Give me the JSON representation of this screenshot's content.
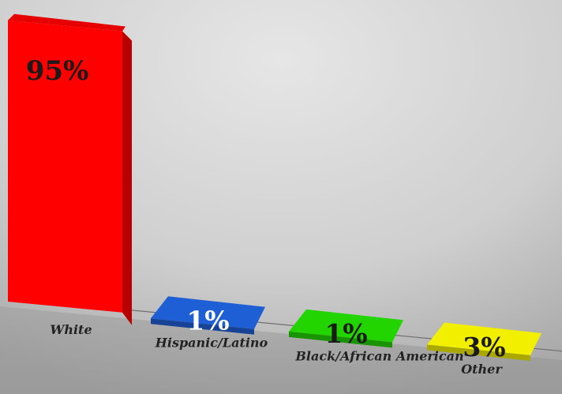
{
  "chart_data": {
    "type": "bar",
    "categories": [
      "White",
      "Hispanic/Latino",
      "Black/African American",
      "Other"
    ],
    "values": [
      95,
      1,
      1,
      3
    ],
    "data_labels": [
      "95%",
      "1%",
      "1%",
      "3%"
    ],
    "colors": [
      "#ff0000",
      "#1f5fd6",
      "#22d400",
      "#f2ef00"
    ],
    "label_colors": [
      "#1a1a1a",
      "#ffffff",
      "#1a1a1a",
      "#1a1a1a"
    ],
    "ylim": [
      0,
      100
    ],
    "grid": false,
    "legend": "none",
    "style": "3d-perspective"
  }
}
